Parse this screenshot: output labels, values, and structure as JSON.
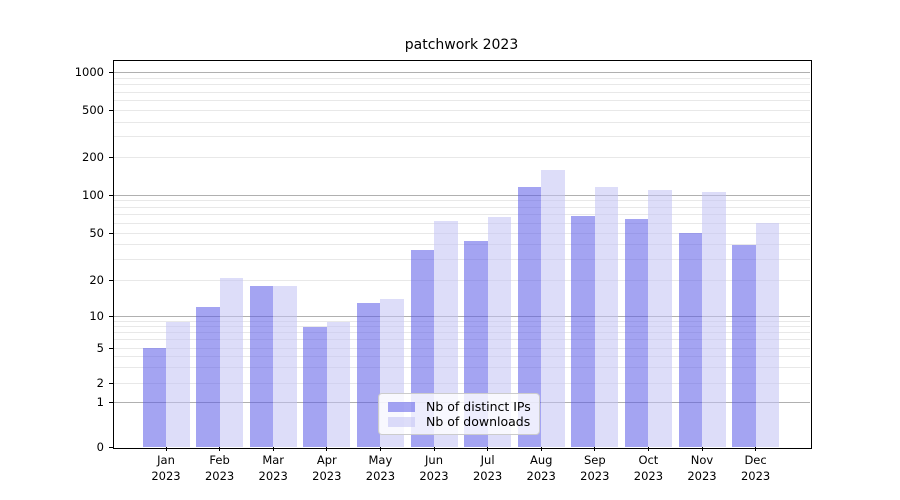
{
  "chart_data": {
    "type": "bar",
    "title": "patchwork 2023",
    "x_categories": {
      "months": [
        "Jan",
        "Feb",
        "Mar",
        "Apr",
        "May",
        "Jun",
        "Jul",
        "Aug",
        "Sep",
        "Oct",
        "Nov",
        "Dec"
      ],
      "year": "2023"
    },
    "series": [
      {
        "key": "ips",
        "name": "Nb of distinct IPs",
        "color_hex": "#a4a4f0",
        "color_rgba": "rgba(90,90,231,0.55)",
        "values": [
          5,
          12,
          18,
          8,
          13,
          36,
          43,
          115,
          68,
          65,
          50,
          40
        ]
      },
      {
        "key": "downloads",
        "name": "Nb of downloads",
        "color_hex": "#dcdcf8",
        "color_rgba": "rgba(193,193,244,0.55)",
        "values": [
          9,
          21,
          18,
          9,
          14,
          62,
          67,
          160,
          115,
          110,
          105,
          60
        ]
      }
    ],
    "y_axis": {
      "tick_labels": [
        0,
        1,
        2,
        5,
        10,
        20,
        50,
        100,
        200,
        500,
        1000
      ],
      "scale": "symlog",
      "ylim": [
        0,
        1250
      ]
    },
    "x_axis": {
      "tick_label_lines": 2
    },
    "legend": {
      "position": "lower center",
      "entries": [
        "Nb of distinct IPs",
        "Nb of downloads"
      ]
    },
    "grid": {
      "horizontal": true,
      "major_at": [
        1,
        10,
        100,
        1000
      ],
      "major_color": "#b0b0b0",
      "minor_color": "#e8e8e8"
    }
  }
}
